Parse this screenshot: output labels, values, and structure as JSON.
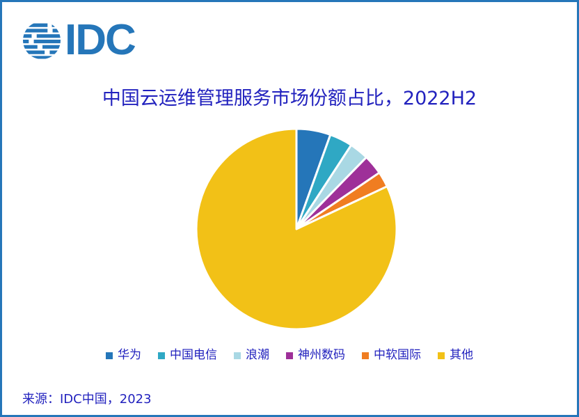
{
  "theme": {
    "brand_color": "#2576B9",
    "text_color": "#2222BE",
    "page_border_color": "#2576B9",
    "background_color": "#FFFFFF",
    "slice_gap_color": "#FFFFFF"
  },
  "logo": {
    "text": "IDC",
    "globe_icon": "idc-striped-globe"
  },
  "title": {
    "text": "中国云运维管理服务市场份额占比，2022H2"
  },
  "chart_data": {
    "type": "pie",
    "title": "中国云运维管理服务市场份额占比，2022H2",
    "start_angle_deg": 0,
    "direction": "clockwise",
    "legend_position": "bottom",
    "units": "percent (estimated from slice angles, no data labels shown)",
    "series": [
      {
        "name": "华为",
        "value": 5.5,
        "color": "#2576B9"
      },
      {
        "name": "中国电信",
        "value": 3.7,
        "color": "#2FA8C4"
      },
      {
        "name": "浪潮",
        "value": 3.1,
        "color": "#A9D8E4"
      },
      {
        "name": "神州数码",
        "value": 3.2,
        "color": "#9E3099"
      },
      {
        "name": "中软国际",
        "value": 2.5,
        "color": "#F07D21"
      },
      {
        "name": "其他",
        "value": 82.0,
        "color": "#F2C117"
      }
    ]
  },
  "source": {
    "text": "来源：IDC中国，2023"
  }
}
